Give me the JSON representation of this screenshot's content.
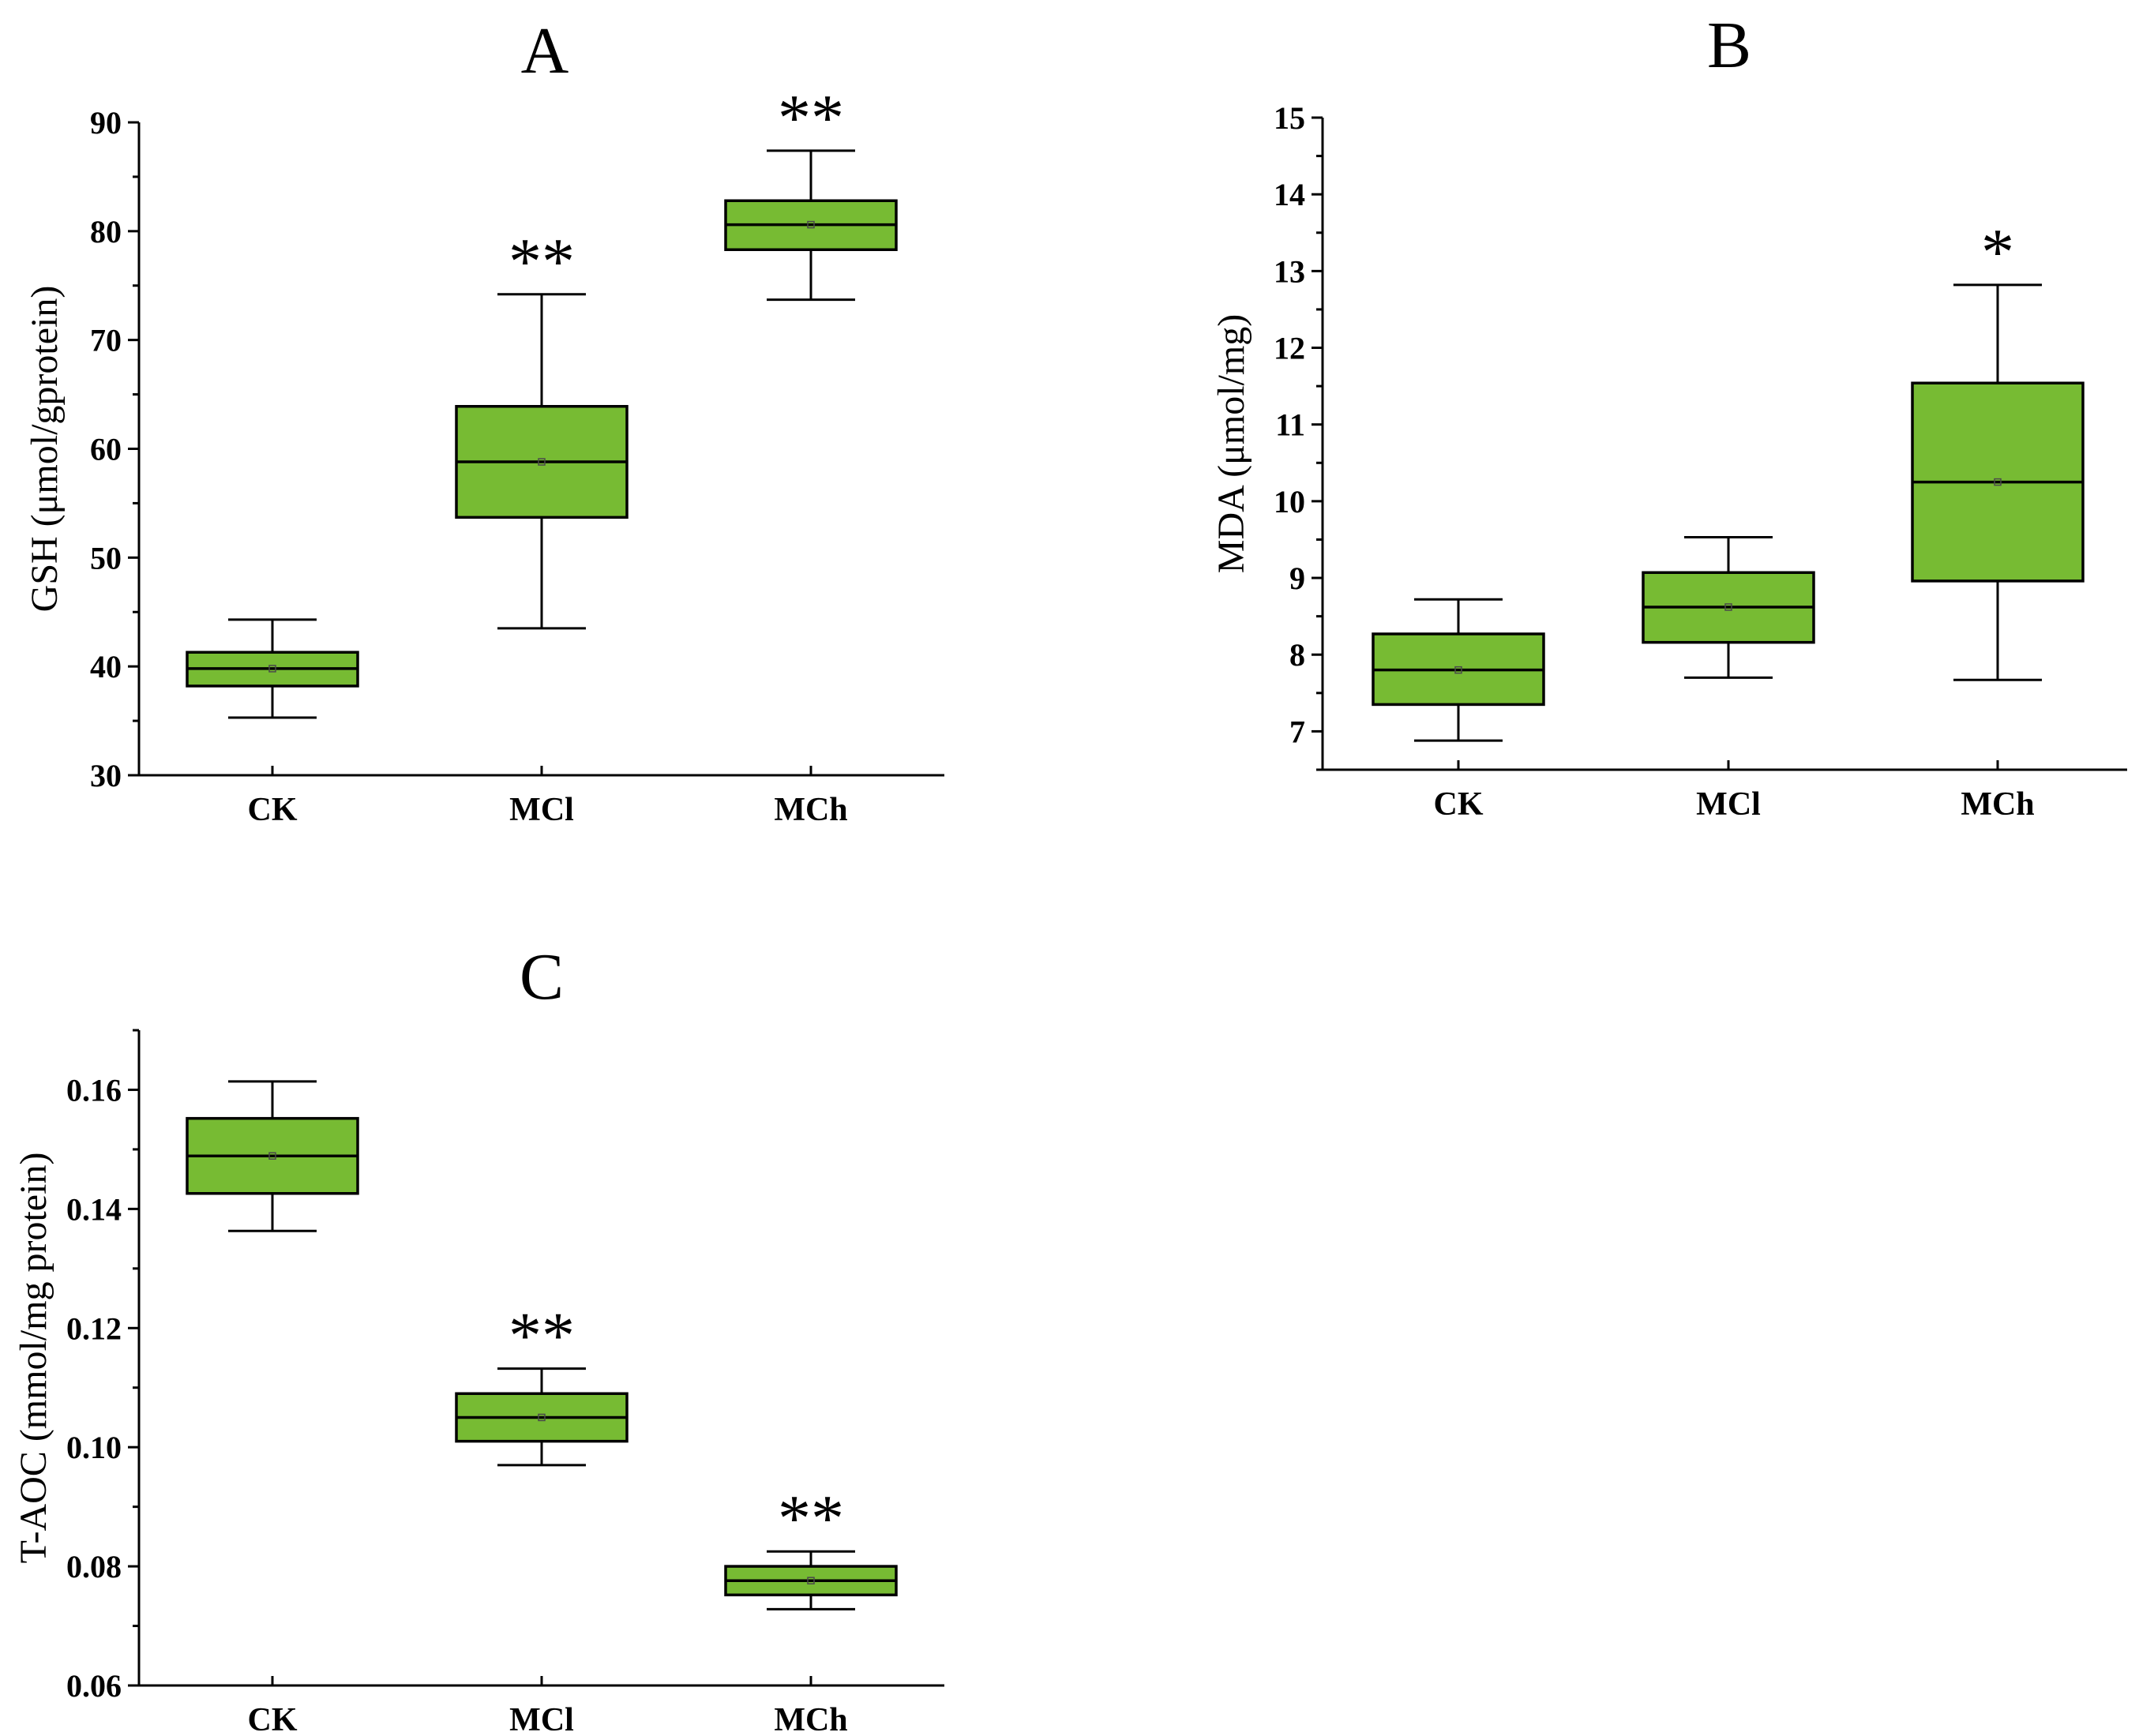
{
  "chart_data": [
    {
      "type": "box",
      "title": "A",
      "xlabel": "",
      "ylabel": "GSH (μmol/gprotein)",
      "ylim": [
        30,
        90
      ],
      "yticks": [
        30,
        40,
        50,
        60,
        70,
        80,
        90
      ],
      "ytick_labels": [
        "30",
        "40",
        "50",
        "60",
        "70",
        "80",
        "90"
      ],
      "minor_ticks": true,
      "grid": false,
      "categories": [
        "CK",
        "MCl",
        "MCh"
      ],
      "box_color": "#77bb33",
      "boxes": [
        {
          "category": "CK",
          "whisker_low": 35.3,
          "q1": 38.2,
          "median": 39.8,
          "mean": 39.8,
          "q3": 41.3,
          "whisker_high": 44.3,
          "significance": ""
        },
        {
          "category": "MCl",
          "whisker_low": 43.5,
          "q1": 53.7,
          "median": 58.8,
          "mean": 58.8,
          "q3": 63.9,
          "whisker_high": 74.2,
          "significance": "**"
        },
        {
          "category": "MCh",
          "whisker_low": 73.7,
          "q1": 78.3,
          "median": 80.6,
          "mean": 80.6,
          "q3": 82.8,
          "whisker_high": 87.4,
          "significance": "**"
        }
      ]
    },
    {
      "type": "box",
      "title": "B",
      "xlabel": "",
      "ylabel": "MDA (μmol/mg)",
      "ylim": [
        6.5,
        15
      ],
      "yticks": [
        7,
        8,
        9,
        10,
        11,
        12,
        13,
        14,
        15
      ],
      "ytick_labels": [
        "7",
        "8",
        "9",
        "10",
        "11",
        "12",
        "13",
        "14",
        "15"
      ],
      "minor_ticks": true,
      "grid": false,
      "categories": [
        "CK",
        "MCl",
        "MCh"
      ],
      "box_color": "#77bb33",
      "boxes": [
        {
          "category": "CK",
          "whisker_low": 6.88,
          "q1": 7.35,
          "median": 7.8,
          "mean": 7.8,
          "q3": 8.27,
          "whisker_high": 8.72,
          "significance": ""
        },
        {
          "category": "MCl",
          "whisker_low": 7.7,
          "q1": 8.16,
          "median": 8.62,
          "mean": 8.62,
          "q3": 9.07,
          "whisker_high": 9.53,
          "significance": ""
        },
        {
          "category": "MCh",
          "whisker_low": 7.67,
          "q1": 8.96,
          "median": 10.25,
          "mean": 10.25,
          "q3": 11.54,
          "whisker_high": 12.82,
          "significance": "*"
        }
      ]
    },
    {
      "type": "box",
      "title": "C",
      "xlabel": "",
      "ylabel": "T-AOC (mmol/mg protein)",
      "ylim": [
        0.06,
        0.17
      ],
      "yticks": [
        0.06,
        0.08,
        0.1,
        0.12,
        0.14,
        0.16
      ],
      "ytick_labels": [
        "0.06",
        "0.08",
        "0.10",
        "0.12",
        "0.14",
        "0.16"
      ],
      "minor_ticks": true,
      "grid": false,
      "categories": [
        "CK",
        "MCl",
        "MCh"
      ],
      "box_color": "#77bb33",
      "boxes": [
        {
          "category": "CK",
          "whisker_low": 0.1363,
          "q1": 0.1426,
          "median": 0.1489,
          "mean": 0.1489,
          "q3": 0.1552,
          "whisker_high": 0.1614,
          "significance": ""
        },
        {
          "category": "MCl",
          "whisker_low": 0.097,
          "q1": 0.101,
          "median": 0.105,
          "mean": 0.105,
          "q3": 0.109,
          "whisker_high": 0.1132,
          "significance": "**"
        },
        {
          "category": "MCh",
          "whisker_low": 0.0728,
          "q1": 0.0752,
          "median": 0.0776,
          "mean": 0.0776,
          "q3": 0.08,
          "whisker_high": 0.0825,
          "significance": "**"
        }
      ]
    }
  ]
}
